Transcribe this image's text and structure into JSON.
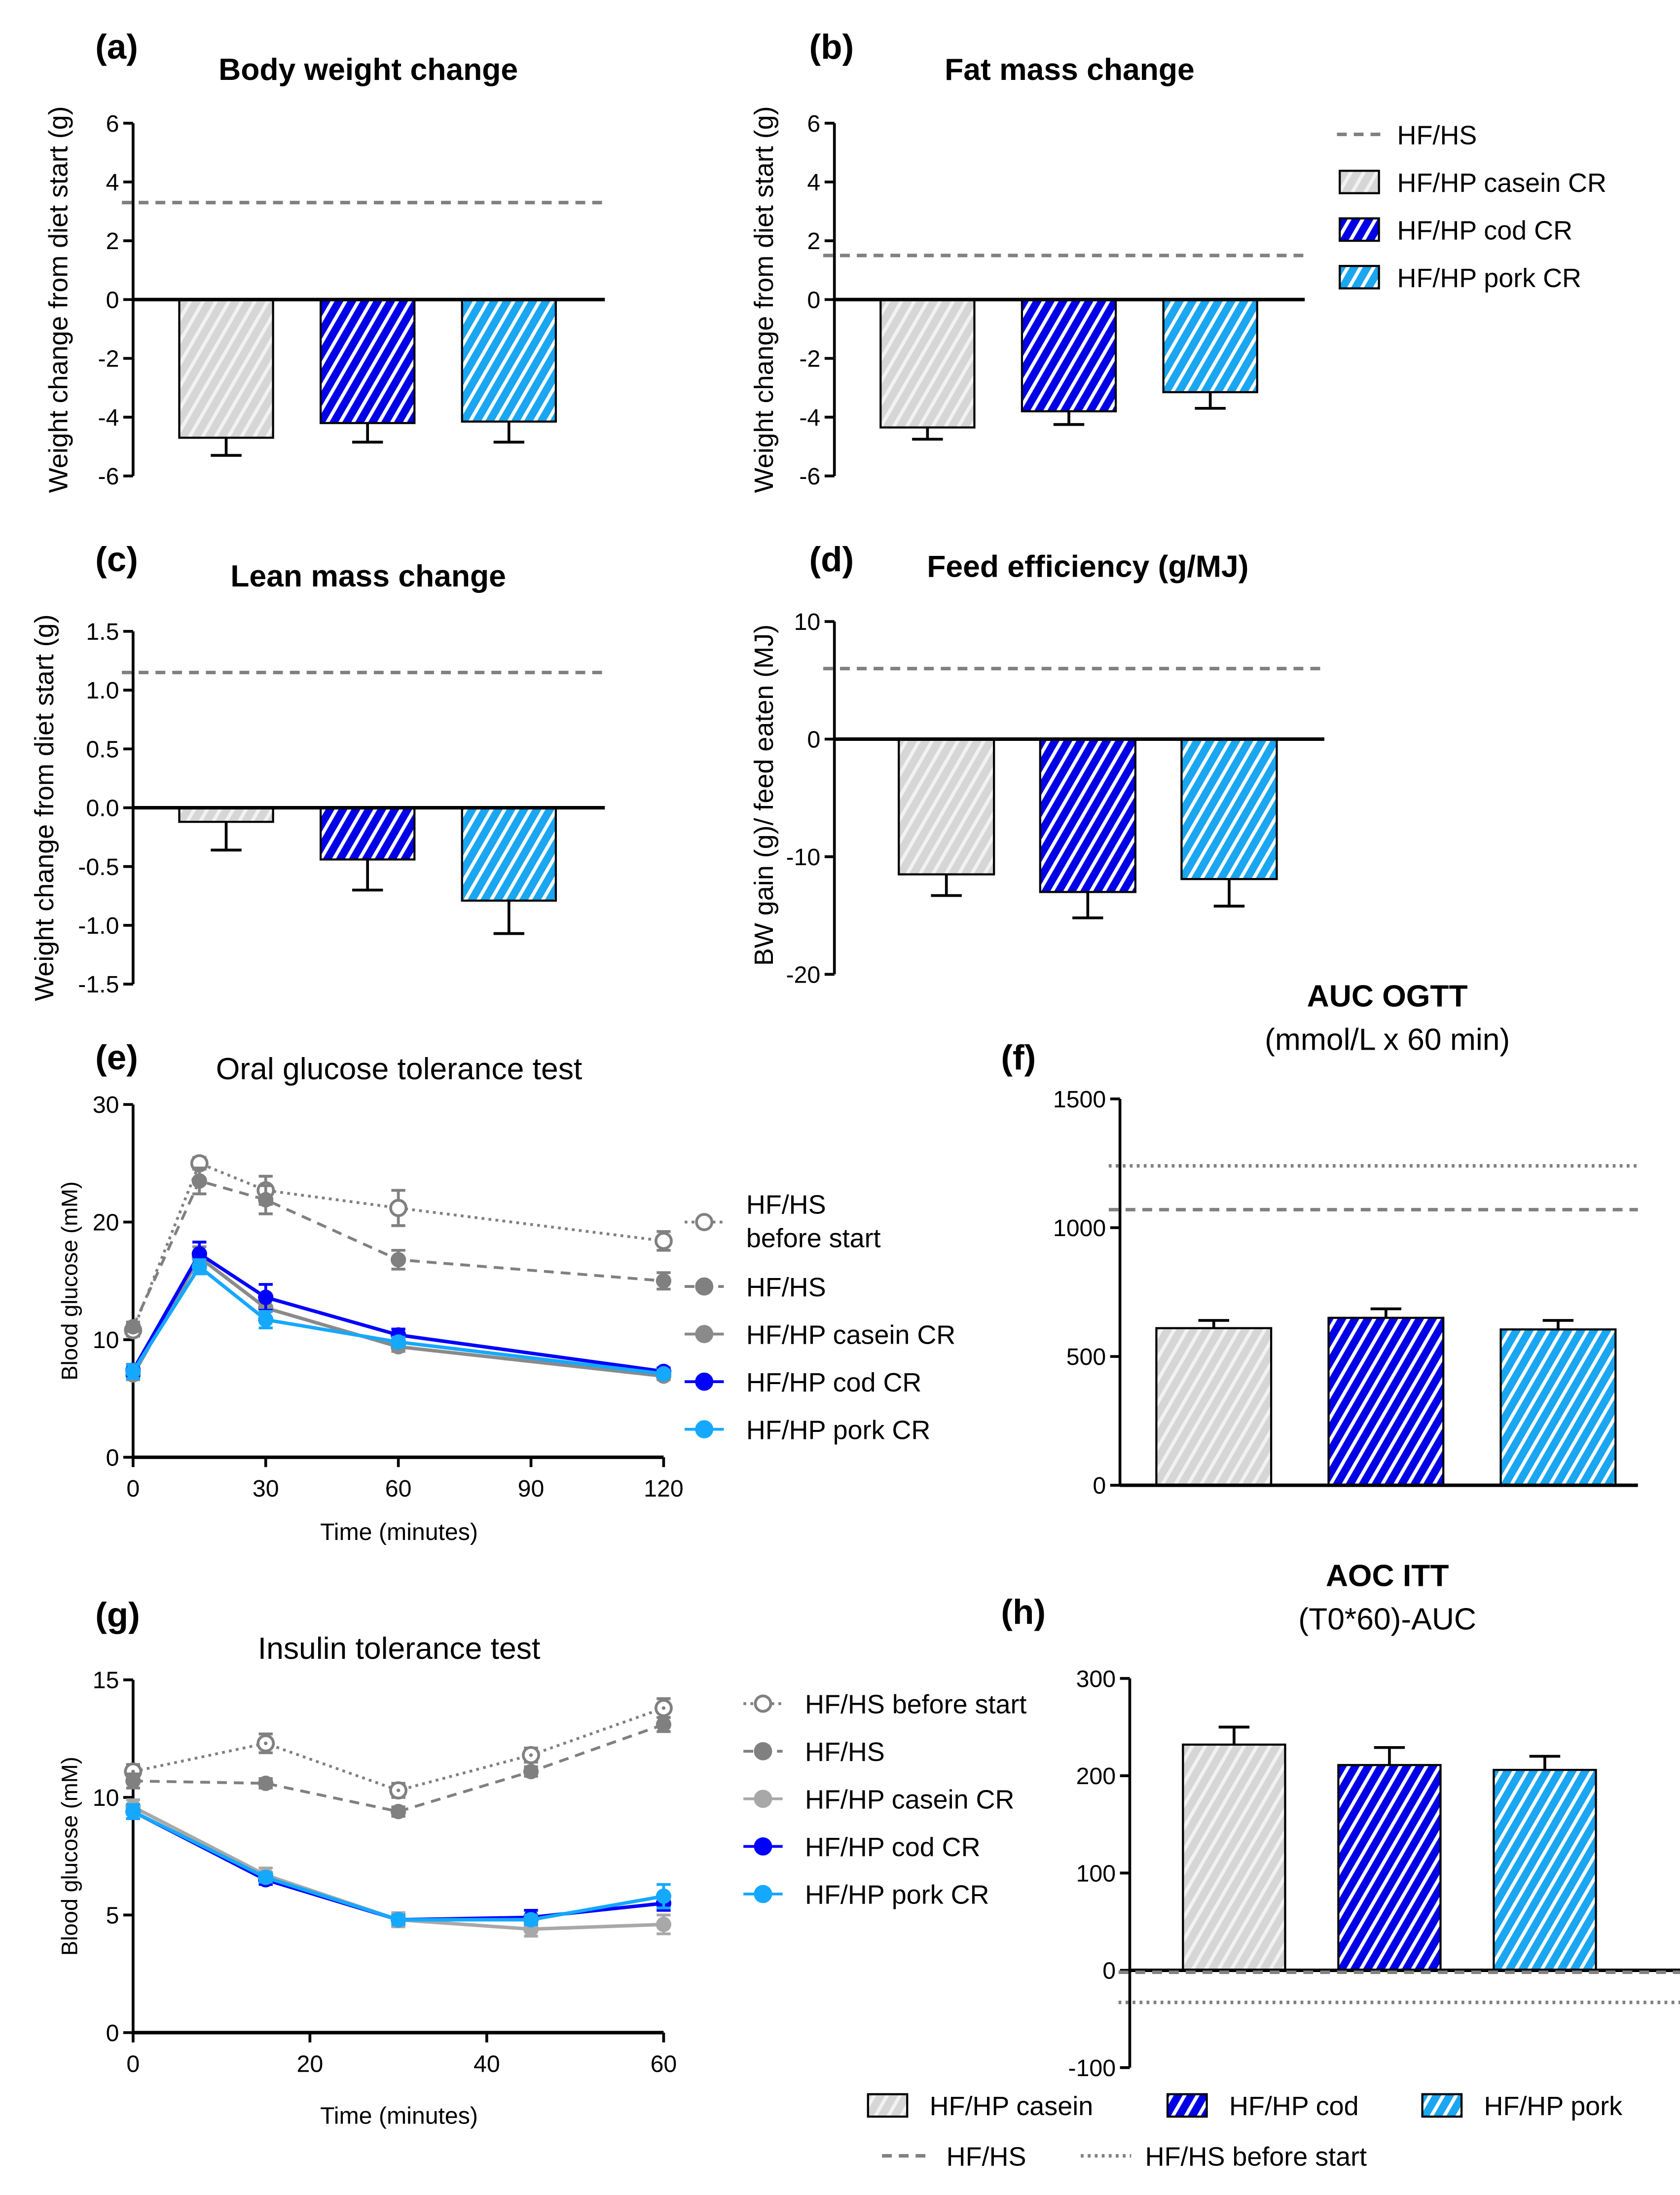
{
  "colors": {
    "casein": "#d6d6d6",
    "cod": "#0000e6",
    "pork": "#1aa6f0",
    "hfhs": "#808080",
    "before": "#808080",
    "casein_line_e": "#8a8a8a",
    "casein_line_g": "#a8a8a8",
    "cod_line": "#0000ff",
    "pork_line": "#15a8ff"
  },
  "legend_top": {
    "items": [
      "HF/HS",
      "HF/HP casein CR",
      "HF/HP cod CR",
      "HF/HP pork CR"
    ]
  },
  "legend_bottom": {
    "items": [
      "HF/HP casein",
      "HF/HP cod",
      "HF/HP pork",
      "HF/HS",
      "HF/HS before start"
    ]
  },
  "chart_data": [
    {
      "id": "a",
      "panel_label": "(a)",
      "type": "bar",
      "title": "Body weight change",
      "ylabel": "Weight change from diet start (g)",
      "ylim": [
        -6,
        6
      ],
      "yticks": [
        "6",
        "4",
        "2",
        "0",
        "-2",
        "-4",
        "-6"
      ],
      "ytick_values": [
        6,
        4,
        2,
        0,
        -2,
        -4,
        -6
      ],
      "categories": [
        "HF/HP casein CR",
        "HF/HP cod CR",
        "HF/HP pork CR"
      ],
      "values": [
        -4.7,
        -4.2,
        -4.15
      ],
      "errors": [
        0.6,
        0.65,
        0.7
      ],
      "ref_lines": [
        {
          "name": "HF/HS",
          "style": "dashed",
          "value": 3.3
        }
      ]
    },
    {
      "id": "b",
      "panel_label": "(b)",
      "type": "bar",
      "title": "Fat mass change",
      "ylabel": "Weight change from diet start (g)",
      "ylim": [
        -6,
        6
      ],
      "yticks": [
        "6",
        "4",
        "2",
        "0",
        "-2",
        "-4",
        "-6"
      ],
      "ytick_values": [
        6,
        4,
        2,
        0,
        -2,
        -4,
        -6
      ],
      "categories": [
        "HF/HP casein CR",
        "HF/HP cod CR",
        "HF/HP pork CR"
      ],
      "values": [
        -4.35,
        -3.8,
        -3.15
      ],
      "errors": [
        0.4,
        0.45,
        0.55
      ],
      "ref_lines": [
        {
          "name": "HF/HS",
          "style": "dashed",
          "value": 1.5
        }
      ]
    },
    {
      "id": "c",
      "panel_label": "(c)",
      "type": "bar",
      "title": "Lean mass change",
      "ylabel": "Weight change from diet start (g)",
      "ylim": [
        -1.5,
        1.5
      ],
      "yticks": [
        "1.5",
        "1.0",
        "0.5",
        "0.0",
        "-0.5",
        "-1.0",
        "-1.5"
      ],
      "ytick_values": [
        1.5,
        1,
        0.5,
        0,
        -0.5,
        -1,
        -1.5
      ],
      "categories": [
        "HF/HP casein CR",
        "HF/HP cod CR",
        "HF/HP pork CR"
      ],
      "values": [
        -0.12,
        -0.44,
        -0.79
      ],
      "errors": [
        0.24,
        0.26,
        0.28
      ],
      "ref_lines": [
        {
          "name": "HF/HS",
          "style": "dashed",
          "value": 1.15
        }
      ]
    },
    {
      "id": "d",
      "panel_label": "(d)",
      "type": "bar",
      "title": "Feed efficiency (g/MJ)",
      "ylabel": "BW gain (g)/ feed eaten (MJ)",
      "ylim": [
        -20,
        10
      ],
      "yticks": [
        "10",
        "0",
        "-10",
        "-20"
      ],
      "ytick_values": [
        10,
        0,
        -10,
        -20
      ],
      "categories": [
        "HF/HP casein CR",
        "HF/HP cod CR",
        "HF/HP pork CR"
      ],
      "values": [
        -11.5,
        -13.0,
        -11.9
      ],
      "errors": [
        1.8,
        2.2,
        2.3
      ],
      "ref_lines": [
        {
          "name": "HF/HS",
          "style": "dashed",
          "value": 6
        }
      ]
    },
    {
      "id": "e",
      "panel_label": "(e)",
      "type": "line",
      "title": "Oral glucose tolerance test",
      "xlabel": "Time (minutes)",
      "ylabel": "Blood glucose (mM)",
      "xlim": [
        0,
        120
      ],
      "ylim": [
        0,
        30
      ],
      "xticks": [
        "0",
        "30",
        "60",
        "90",
        "120"
      ],
      "xtick_values": [
        0,
        30,
        60,
        90,
        120
      ],
      "yticks": [
        "30",
        "20",
        "10",
        "0"
      ],
      "ytick_values": [
        30,
        20,
        10,
        0
      ],
      "x": [
        0,
        15,
        30,
        60,
        120
      ],
      "series": [
        {
          "name": "HF/HS before start",
          "name_lines": [
            "HF/HS",
            "before start"
          ],
          "style": "dotted",
          "marker": "open",
          "values": [
            10.8,
            25.0,
            22.7,
            21.2,
            18.4
          ],
          "errors": [
            0.5,
            0.5,
            1.2,
            1.5,
            0.8
          ]
        },
        {
          "name": "HF/HS",
          "style": "dashed",
          "marker": "filled",
          "values": [
            11.1,
            23.5,
            21.9,
            16.8,
            15.0
          ],
          "errors": [
            0.4,
            1.1,
            1.2,
            0.8,
            0.7
          ]
        },
        {
          "name": "HF/HP casein CR",
          "style": "solid",
          "marker": "filled",
          "values": [
            7.0,
            17.0,
            12.7,
            9.4,
            6.9
          ],
          "errors": [
            0.4,
            0.9,
            0.9,
            0.4,
            0.3
          ]
        },
        {
          "name": "HF/HP cod CR",
          "style": "solid",
          "marker": "filled",
          "values": [
            7.4,
            17.3,
            13.6,
            10.4,
            7.3
          ],
          "errors": [
            0.5,
            1.0,
            1.1,
            0.5,
            0.3
          ]
        },
        {
          "name": "HF/HP pork CR",
          "style": "solid",
          "marker": "filled",
          "values": [
            7.3,
            16.2,
            11.7,
            9.8,
            7.1
          ],
          "errors": [
            0.6,
            0.6,
            0.7,
            0.4,
            0.3
          ]
        }
      ]
    },
    {
      "id": "f",
      "panel_label": "(f)",
      "type": "bar",
      "title": "AUC OGTT",
      "subtitle": "(mmol/L x 60 min)",
      "ylim": [
        0,
        1500
      ],
      "yticks": [
        "1500",
        "1000",
        "500",
        "0"
      ],
      "ytick_values": [
        1500,
        1000,
        500,
        0
      ],
      "categories": [
        "HF/HP casein",
        "HF/HP cod",
        "HF/HP pork"
      ],
      "values": [
        610,
        650,
        605
      ],
      "errors": [
        30,
        35,
        35
      ],
      "ref_lines": [
        {
          "name": "HF/HS",
          "style": "dashed",
          "value": 1070
        },
        {
          "name": "HF/HS before start",
          "style": "dotted",
          "value": 1240
        }
      ]
    },
    {
      "id": "g",
      "panel_label": "(g)",
      "type": "line",
      "title": "Insulin tolerance test",
      "xlabel": "Time (minutes)",
      "ylabel": "Blood glucose (mM)",
      "xlim": [
        0,
        60
      ],
      "ylim": [
        0,
        15
      ],
      "xticks": [
        "0",
        "20",
        "40",
        "60"
      ],
      "xtick_values": [
        0,
        20,
        40,
        60
      ],
      "yticks": [
        "15",
        "10",
        "5",
        "0"
      ],
      "ytick_values": [
        15,
        10,
        5,
        0
      ],
      "x": [
        0,
        15,
        30,
        45,
        60
      ],
      "series": [
        {
          "name": "HF/HS before start",
          "style": "dotted",
          "marker": "open",
          "values": [
            11.1,
            12.3,
            10.3,
            11.8,
            13.8
          ],
          "errors": [
            0.3,
            0.4,
            0.3,
            0.3,
            0.4
          ]
        },
        {
          "name": "HF/HS",
          "style": "dashed",
          "marker": "filled",
          "values": [
            10.7,
            10.6,
            9.4,
            11.1,
            13.1
          ],
          "errors": [
            0.3,
            0.2,
            0.2,
            0.2,
            0.3
          ]
        },
        {
          "name": "HF/HP casein CR",
          "style": "solid",
          "marker": "filled",
          "values": [
            9.6,
            6.7,
            4.8,
            4.4,
            4.6
          ],
          "errors": [
            0.3,
            0.3,
            0.3,
            0.3,
            0.4
          ]
        },
        {
          "name": "HF/HP cod CR",
          "style": "solid",
          "marker": "filled",
          "values": [
            9.4,
            6.5,
            4.8,
            4.9,
            5.5
          ],
          "errors": [
            0.3,
            0.2,
            0.2,
            0.3,
            0.3
          ]
        },
        {
          "name": "HF/HP pork CR",
          "style": "solid",
          "marker": "filled",
          "values": [
            9.4,
            6.6,
            4.8,
            4.8,
            5.8
          ],
          "errors": [
            0.3,
            0.2,
            0.2,
            0.2,
            0.5
          ]
        }
      ]
    },
    {
      "id": "h",
      "panel_label": "(h)",
      "type": "bar",
      "title": "AOC ITT",
      "subtitle": "(T0*60)-AUC",
      "ylim": [
        -100,
        300
      ],
      "yticks": [
        "300",
        "200",
        "100",
        "0",
        "-100"
      ],
      "ytick_values": [
        300,
        200,
        100,
        0,
        -100
      ],
      "categories": [
        "HF/HP casein",
        "HF/HP cod",
        "HF/HP pork"
      ],
      "values": [
        232,
        211,
        206
      ],
      "errors": [
        18,
        18,
        14
      ],
      "ref_lines": [
        {
          "name": "HF/HS",
          "style": "dashed",
          "value": -2
        },
        {
          "name": "HF/HS before start",
          "style": "dotted",
          "value": -33
        }
      ]
    }
  ]
}
